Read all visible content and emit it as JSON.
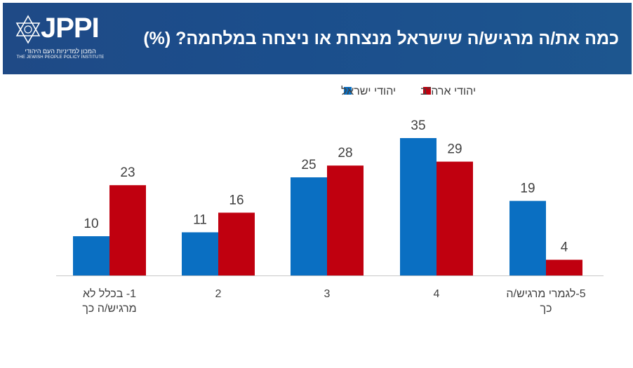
{
  "header": {
    "logo_text": "JPPI",
    "logo_subtitle_he": "המכון למדיניות העם היהודי",
    "logo_subtitle_en": "THE JEWISH PEOPLE POLICY INSTITUTE",
    "title": "כמה את/ה מרגיש/ה שישראל מנצחת או ניצחה במלחמה? (%)"
  },
  "colors": {
    "header_bg": "#1f4a86",
    "series_israel": "#0a6fc2",
    "series_us": "#c0000f"
  },
  "chart_data": {
    "type": "bar",
    "title": "כמה את/ה מרגיש/ה שישראל מנצחת או ניצחה במלחמה? (%)",
    "categories": [
      [
        "1- בכלל לא",
        "מרגיש/ה כך"
      ],
      [
        "2"
      ],
      [
        "3"
      ],
      [
        "4"
      ],
      [
        "5-לגמרי מרגיש/ה",
        "כך"
      ]
    ],
    "series": [
      {
        "name": "יהודי ישראל",
        "color": "#0a6fc2",
        "values": [
          10,
          11,
          25,
          35,
          19
        ]
      },
      {
        "name": "יהודי ארה\"ב",
        "color": "#c0000f",
        "values": [
          23,
          16,
          28,
          29,
          4
        ]
      }
    ],
    "ylim": [
      0,
      35
    ],
    "grid": false,
    "legend": "top-center",
    "data_labels": true
  }
}
